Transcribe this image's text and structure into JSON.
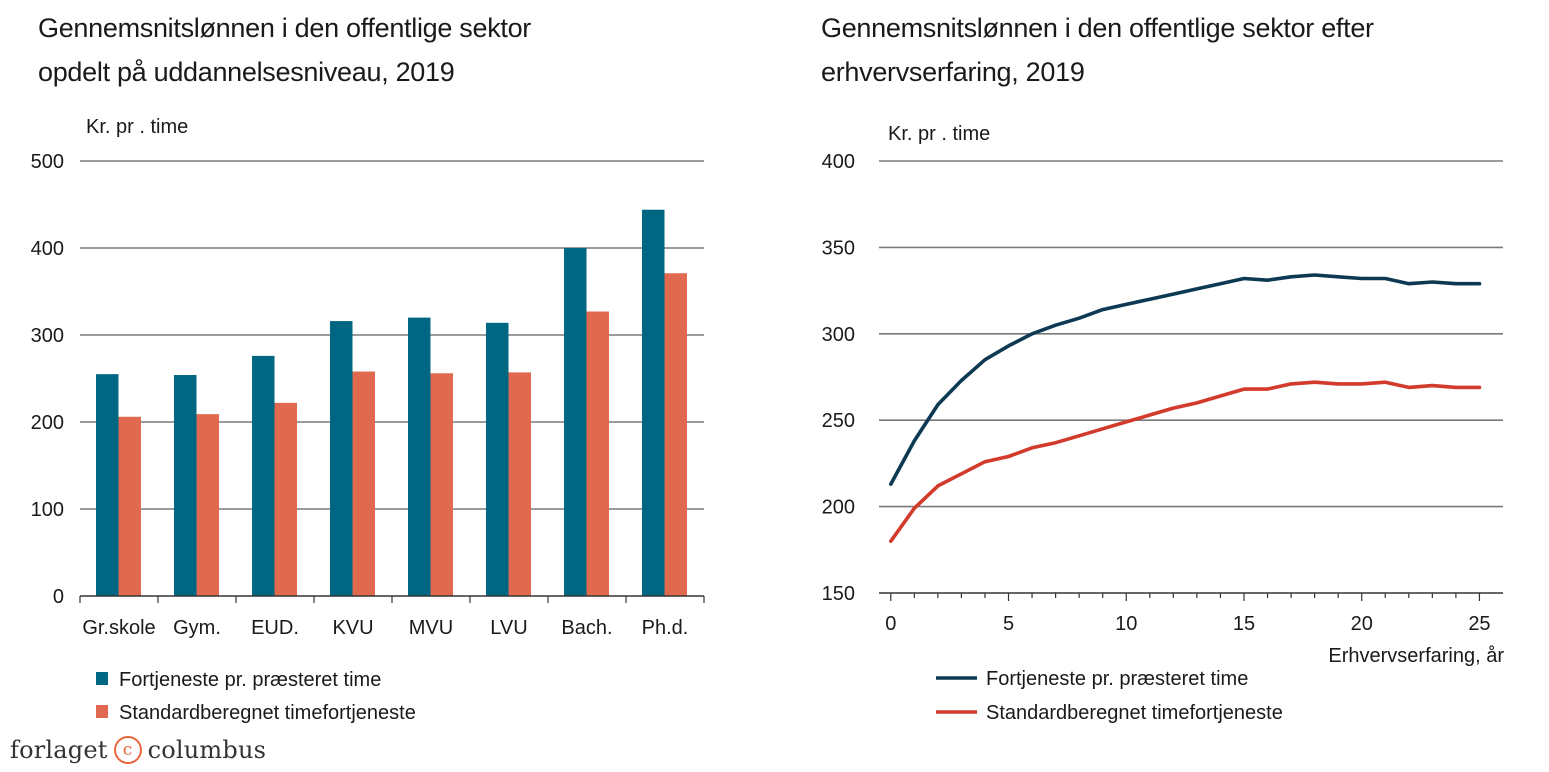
{
  "colors": {
    "bar_series1": "#006782",
    "bar_series2": "#e1694f",
    "line_series1": "#0d3a52",
    "line_series2": "#d23a2c",
    "grid": "#7a7a7a",
    "axis": "#333333"
  },
  "left_chart": {
    "title_line1": "Gennemsnitslønnen i den offentlige sektor",
    "title_line2": "opdelt på uddannelsesniveau, 2019"
  },
  "right_chart": {
    "title_line1": "Gennemsnitslønnen i den offentlige sektor efter",
    "title_line2": "erhvervserfaring, 2019"
  },
  "logo": {
    "left": "forlaget",
    "mark": "c",
    "right": "columbus"
  },
  "chart_data": [
    {
      "type": "bar",
      "title": "Gennemsnitslønnen i den offentlige sektor opdelt på uddannelsesniveau, 2019",
      "ylabel": "Kr. pr . time",
      "xlabel": "",
      "ylim": [
        0,
        500
      ],
      "yticks": [
        0,
        100,
        200,
        300,
        400,
        500
      ],
      "grid": true,
      "legend_position": "bottom",
      "categories": [
        "Gr.skole",
        "Gym.",
        "EUD.",
        "KVU",
        "MVU",
        "LVU",
        "Bach.",
        "Ph.d."
      ],
      "series": [
        {
          "name": "Fortjeneste pr. præsteret time",
          "values": [
            255,
            254,
            276,
            316,
            320,
            314,
            400,
            444
          ]
        },
        {
          "name": "Standardberegnet timefortjeneste",
          "values": [
            206,
            209,
            222,
            258,
            256,
            257,
            327,
            371
          ]
        }
      ]
    },
    {
      "type": "line",
      "title": "Gennemsnitslønnen i den offentlige sektor efter erhvervserfaring, 2019",
      "ylabel": "Kr. pr . time",
      "xlabel": "Erhvervserfaring, år",
      "xlim": [
        -0.5,
        26
      ],
      "ylim": [
        150,
        400
      ],
      "xticks": [
        0,
        5,
        10,
        15,
        20,
        25
      ],
      "yticks": [
        150,
        200,
        250,
        300,
        350,
        400
      ],
      "grid": true,
      "legend_position": "bottom",
      "x": [
        0,
        1,
        2,
        3,
        4,
        5,
        6,
        7,
        8,
        9,
        10,
        11,
        12,
        13,
        14,
        15,
        16,
        17,
        18,
        19,
        20,
        21,
        22,
        23,
        24,
        25
      ],
      "series": [
        {
          "name": "Fortjeneste pr. præsteret time",
          "values": [
            213,
            238,
            259,
            273,
            285,
            293,
            300,
            305,
            309,
            314,
            317,
            320,
            323,
            326,
            329,
            332,
            331,
            333,
            334,
            333,
            332,
            332,
            329,
            330,
            329,
            329
          ]
        },
        {
          "name": "Standardberegnet timefortjeneste",
          "values": [
            180,
            199,
            212,
            219,
            226,
            229,
            234,
            237,
            241,
            245,
            249,
            253,
            257,
            260,
            264,
            268,
            268,
            271,
            272,
            271,
            271,
            272,
            269,
            270,
            269,
            269
          ]
        }
      ]
    }
  ]
}
